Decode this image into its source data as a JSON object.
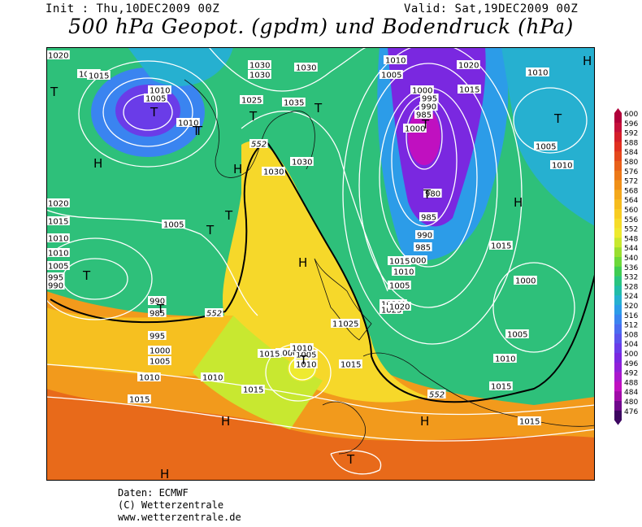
{
  "header": {
    "init": "Init : Thu,10DEC2009 00Z",
    "valid": "Valid: Sat,19DEC2009 00Z",
    "title": "500 hPa Geopot. (gpdm) und Bodendruck (hPa)"
  },
  "credits": {
    "source": "Daten: ECMWF",
    "copyright": "(C) Wetterzentrale",
    "url": "www.wetterzentrale.de"
  },
  "colorbar": {
    "labels": [
      "600",
      "596",
      "592",
      "588",
      "584",
      "580",
      "576",
      "572",
      "568",
      "564",
      "560",
      "556",
      "552",
      "548",
      "544",
      "540",
      "536",
      "532",
      "528",
      "524",
      "520",
      "516",
      "512",
      "508",
      "504",
      "500",
      "496",
      "492",
      "488",
      "484",
      "480",
      "476"
    ],
    "colors": [
      "#b0003a",
      "#c4103a",
      "#d41f2a",
      "#e03020",
      "#e4481c",
      "#e8601a",
      "#ec7818",
      "#f09018",
      "#f4a81c",
      "#f6bc1e",
      "#f8cc22",
      "#f6dc2a",
      "#eeea30",
      "#c8e830",
      "#9ade30",
      "#6cd83a",
      "#40cc52",
      "#2ac480",
      "#22bca8",
      "#26b0d0",
      "#2c9ce8",
      "#3a84f0",
      "#4a6cf0",
      "#5a54ec",
      "#6a3ce8",
      "#7a28e0",
      "#9020d8",
      "#aa18cc",
      "#c010c0",
      "#a00ca8",
      "#70088c",
      "#3c0660"
    ]
  },
  "map": {
    "ocean_color": "#2c9ce8",
    "pressure_labels": [
      {
        "text": "1020"
      },
      {
        "text": "1020"
      },
      {
        "text": "1015"
      },
      {
        "text": "1010"
      },
      {
        "text": "1005"
      },
      {
        "text": "1010"
      },
      {
        "text": "1030"
      },
      {
        "text": "1030"
      },
      {
        "text": "1025"
      },
      {
        "text": "1035"
      },
      {
        "text": "1030"
      },
      {
        "text": "1030"
      },
      {
        "text": "1030"
      },
      {
        "text": "1010"
      },
      {
        "text": "1005"
      },
      {
        "text": "1000"
      },
      {
        "text": "995"
      },
      {
        "text": "990"
      },
      {
        "text": "985"
      },
      {
        "text": "1000"
      },
      {
        "text": "980"
      },
      {
        "text": "985"
      },
      {
        "text": "990"
      },
      {
        "text": "985"
      },
      {
        "text": "1000"
      },
      {
        "text": "1020"
      },
      {
        "text": "1015"
      },
      {
        "text": "1010"
      },
      {
        "text": "1005"
      },
      {
        "text": "1010"
      },
      {
        "text": "1030"
      },
      {
        "text": "1020"
      },
      {
        "text": "1015"
      },
      {
        "text": "1005"
      },
      {
        "text": "1010"
      },
      {
        "text": "1010"
      },
      {
        "text": "1005"
      },
      {
        "text": "995"
      },
      {
        "text": "990"
      },
      {
        "text": "990"
      },
      {
        "text": "985"
      },
      {
        "text": "995"
      },
      {
        "text": "1000"
      },
      {
        "text": "1005"
      },
      {
        "text": "1010"
      },
      {
        "text": "1015"
      },
      {
        "text": "1010"
      },
      {
        "text": "1015"
      },
      {
        "text": "1000"
      },
      {
        "text": "1005"
      },
      {
        "text": "1010"
      },
      {
        "text": "1015"
      },
      {
        "text": "1020"
      },
      {
        "text": "1025"
      },
      {
        "text": "1020"
      },
      {
        "text": "1025"
      },
      {
        "text": "1015"
      },
      {
        "text": "1010"
      },
      {
        "text": "1005"
      },
      {
        "text": "1020"
      },
      {
        "text": "1015"
      },
      {
        "text": "1010"
      },
      {
        "text": "1015"
      },
      {
        "text": "1000"
      },
      {
        "text": "1005"
      },
      {
        "text": "1010"
      },
      {
        "text": "1015"
      },
      {
        "text": "1015"
      }
    ],
    "height_labels": [
      {
        "text": "552"
      },
      {
        "text": "552"
      },
      {
        "text": "552"
      }
    ],
    "symbols": [
      {
        "text": "T"
      },
      {
        "text": "T"
      },
      {
        "text": "T"
      },
      {
        "text": "H"
      },
      {
        "text": "T"
      },
      {
        "text": "H"
      },
      {
        "text": "T"
      },
      {
        "text": "T"
      },
      {
        "text": "T"
      },
      {
        "text": "H"
      },
      {
        "text": "T"
      },
      {
        "text": "T"
      },
      {
        "text": "H"
      },
      {
        "text": "T"
      },
      {
        "text": "T"
      },
      {
        "text": "H"
      },
      {
        "text": "H"
      },
      {
        "text": "T"
      },
      {
        "text": "T"
      },
      {
        "text": "T"
      },
      {
        "text": "H"
      },
      {
        "text": "T"
      },
      {
        "text": "H"
      }
    ]
  }
}
